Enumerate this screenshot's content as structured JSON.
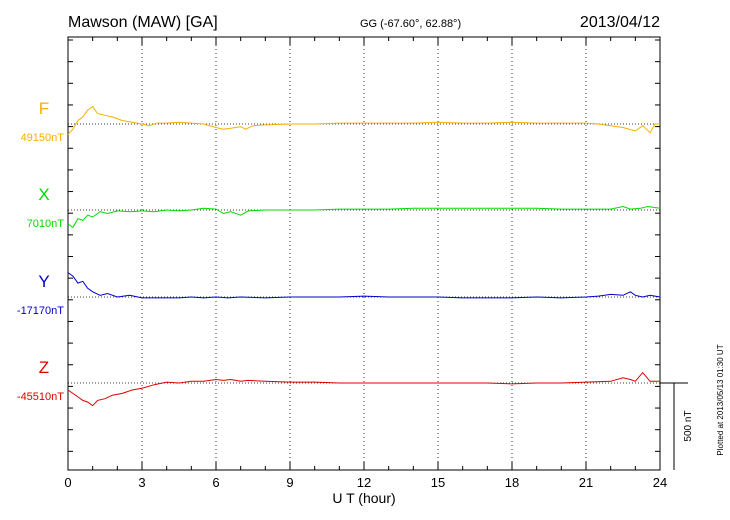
{
  "header": {
    "station": "Mawson (MAW)  [GA]",
    "coords": "GG (-67.60°,  62.88°)",
    "date": "2013/04/12"
  },
  "footer": {
    "plotted_at": "Plotted at 2013/05/13 01:30 UT"
  },
  "colors": {
    "F": "#f5b000",
    "X": "#00dd00",
    "Y": "#0000cc",
    "Z": "#dd0000",
    "axis": "#000000"
  },
  "chart_data": {
    "type": "line",
    "title": "Mawson (MAW)  [GA]",
    "xlabel": "U T (hour)",
    "xlim": [
      0,
      24
    ],
    "xticks": [
      0,
      3,
      6,
      9,
      12,
      15,
      18,
      21,
      24
    ],
    "vertical_grid": "dotted at 3-hour intervals",
    "scale_bar": {
      "label": "500 nT",
      "value_nT": 500
    },
    "series": [
      {
        "name": "F",
        "baseline_label": "49150nT",
        "baseline_nT": 49150,
        "points": [
          [
            0.0,
            -60
          ],
          [
            0.2,
            -30
          ],
          [
            0.4,
            20
          ],
          [
            0.6,
            40
          ],
          [
            0.8,
            80
          ],
          [
            1.0,
            100
          ],
          [
            1.2,
            60
          ],
          [
            1.5,
            50
          ],
          [
            1.8,
            40
          ],
          [
            2.2,
            20
          ],
          [
            2.6,
            10
          ],
          [
            3.0,
            0
          ],
          [
            3.3,
            -10
          ],
          [
            3.6,
            5
          ],
          [
            4.0,
            5
          ],
          [
            4.5,
            10
          ],
          [
            5.0,
            5
          ],
          [
            5.5,
            0
          ],
          [
            6.0,
            -20
          ],
          [
            6.3,
            -30
          ],
          [
            6.6,
            -25
          ],
          [
            7.0,
            -15
          ],
          [
            7.2,
            -30
          ],
          [
            7.5,
            -10
          ],
          [
            8.0,
            -5
          ],
          [
            9.0,
            0
          ],
          [
            10.0,
            0
          ],
          [
            11.0,
            5
          ],
          [
            12.0,
            5
          ],
          [
            13.0,
            5
          ],
          [
            14.0,
            5
          ],
          [
            15.0,
            10
          ],
          [
            16.0,
            5
          ],
          [
            17.0,
            5
          ],
          [
            18.0,
            10
          ],
          [
            19.0,
            5
          ],
          [
            20.0,
            5
          ],
          [
            21.0,
            5
          ],
          [
            21.5,
            0
          ],
          [
            22.0,
            -10
          ],
          [
            22.5,
            -20
          ],
          [
            23.0,
            -40
          ],
          [
            23.3,
            -10
          ],
          [
            23.6,
            -50
          ],
          [
            23.8,
            0
          ],
          [
            24.0,
            0
          ]
        ]
      },
      {
        "name": "X",
        "baseline_label": "7010nT",
        "baseline_nT": 7010,
        "points": [
          [
            0.0,
            -80
          ],
          [
            0.2,
            -100
          ],
          [
            0.4,
            -50
          ],
          [
            0.6,
            -60
          ],
          [
            0.8,
            -30
          ],
          [
            1.0,
            -40
          ],
          [
            1.3,
            -10
          ],
          [
            1.6,
            -20
          ],
          [
            2.0,
            -5
          ],
          [
            2.5,
            -10
          ],
          [
            3.0,
            -5
          ],
          [
            3.5,
            -10
          ],
          [
            4.0,
            0
          ],
          [
            4.5,
            -5
          ],
          [
            5.0,
            0
          ],
          [
            5.5,
            10
          ],
          [
            6.0,
            5
          ],
          [
            6.3,
            -20
          ],
          [
            6.6,
            -10
          ],
          [
            7.0,
            -30
          ],
          [
            7.3,
            -5
          ],
          [
            8.0,
            0
          ],
          [
            9.0,
            0
          ],
          [
            10.0,
            0
          ],
          [
            11.0,
            5
          ],
          [
            12.0,
            5
          ],
          [
            13.0,
            5
          ],
          [
            14.0,
            10
          ],
          [
            15.0,
            10
          ],
          [
            16.0,
            10
          ],
          [
            17.0,
            10
          ],
          [
            18.0,
            10
          ],
          [
            19.0,
            10
          ],
          [
            20.0,
            5
          ],
          [
            21.0,
            5
          ],
          [
            22.0,
            5
          ],
          [
            22.5,
            20
          ],
          [
            22.8,
            5
          ],
          [
            23.2,
            10
          ],
          [
            23.5,
            20
          ],
          [
            24.0,
            10
          ]
        ]
      },
      {
        "name": "Y",
        "baseline_label": "-17170nT",
        "baseline_nT": -17170,
        "points": [
          [
            0.0,
            140
          ],
          [
            0.2,
            120
          ],
          [
            0.4,
            80
          ],
          [
            0.6,
            90
          ],
          [
            0.8,
            50
          ],
          [
            1.0,
            30
          ],
          [
            1.3,
            10
          ],
          [
            1.6,
            20
          ],
          [
            2.0,
            0
          ],
          [
            2.5,
            10
          ],
          [
            3.0,
            -5
          ],
          [
            3.5,
            -5
          ],
          [
            4.0,
            -5
          ],
          [
            4.5,
            -5
          ],
          [
            5.0,
            0
          ],
          [
            5.5,
            -5
          ],
          [
            6.0,
            0
          ],
          [
            6.5,
            -5
          ],
          [
            7.0,
            0
          ],
          [
            8.0,
            -5
          ],
          [
            9.0,
            0
          ],
          [
            10.0,
            0
          ],
          [
            11.0,
            0
          ],
          [
            12.0,
            5
          ],
          [
            13.0,
            0
          ],
          [
            14.0,
            0
          ],
          [
            15.0,
            0
          ],
          [
            16.0,
            -5
          ],
          [
            17.0,
            -5
          ],
          [
            18.0,
            -5
          ],
          [
            19.0,
            0
          ],
          [
            20.0,
            -5
          ],
          [
            21.0,
            0
          ],
          [
            21.5,
            5
          ],
          [
            22.0,
            15
          ],
          [
            22.5,
            10
          ],
          [
            22.8,
            30
          ],
          [
            23.0,
            10
          ],
          [
            23.3,
            0
          ],
          [
            23.6,
            10
          ],
          [
            24.0,
            0
          ]
        ]
      },
      {
        "name": "Z",
        "baseline_label": "-45510nT",
        "baseline_nT": -45510,
        "points": [
          [
            0.0,
            -40
          ],
          [
            0.2,
            -60
          ],
          [
            0.4,
            -80
          ],
          [
            0.6,
            -100
          ],
          [
            0.8,
            -110
          ],
          [
            1.0,
            -130
          ],
          [
            1.2,
            -100
          ],
          [
            1.5,
            -90
          ],
          [
            1.8,
            -70
          ],
          [
            2.2,
            -60
          ],
          [
            2.6,
            -40
          ],
          [
            3.0,
            -30
          ],
          [
            3.5,
            -10
          ],
          [
            4.0,
            5
          ],
          [
            4.5,
            0
          ],
          [
            5.0,
            10
          ],
          [
            5.5,
            10
          ],
          [
            6.0,
            20
          ],
          [
            6.3,
            15
          ],
          [
            6.6,
            20
          ],
          [
            7.0,
            10
          ],
          [
            7.3,
            15
          ],
          [
            8.0,
            10
          ],
          [
            9.0,
            5
          ],
          [
            10.0,
            5
          ],
          [
            11.0,
            0
          ],
          [
            12.0,
            0
          ],
          [
            13.0,
            0
          ],
          [
            14.0,
            0
          ],
          [
            15.0,
            0
          ],
          [
            16.0,
            0
          ],
          [
            17.0,
            0
          ],
          [
            18.0,
            -5
          ],
          [
            19.0,
            0
          ],
          [
            20.0,
            0
          ],
          [
            21.0,
            5
          ],
          [
            22.0,
            10
          ],
          [
            22.5,
            30
          ],
          [
            22.8,
            20
          ],
          [
            23.0,
            10
          ],
          [
            23.3,
            60
          ],
          [
            23.6,
            10
          ],
          [
            24.0,
            10
          ]
        ]
      }
    ]
  }
}
